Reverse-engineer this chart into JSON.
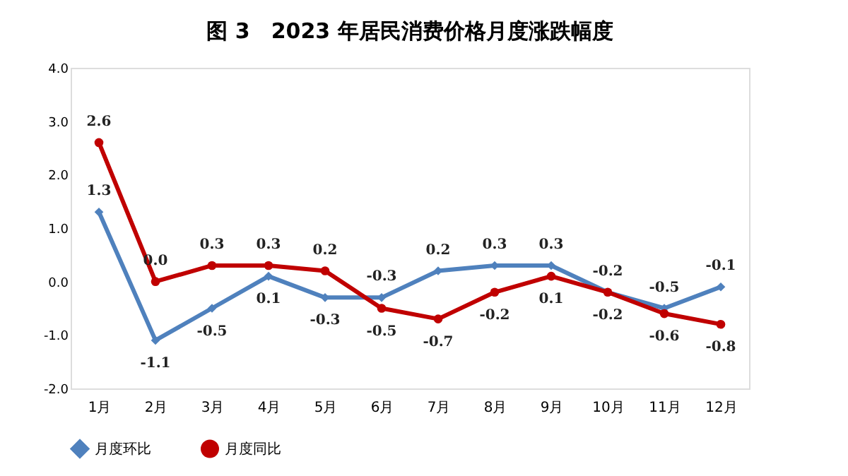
{
  "chart_data": {
    "type": "line",
    "title": "图 3　2023 年居民消费价格月度涨跌幅度",
    "categories": [
      "1月",
      "2月",
      "3月",
      "4月",
      "5月",
      "6月",
      "7月",
      "8月",
      "9月",
      "10月",
      "11月",
      "12月"
    ],
    "series": [
      {
        "name": "月度环比",
        "color": "#4f81bd",
        "marker": "diamond",
        "values": [
          1.3,
          -1.1,
          -0.5,
          0.1,
          -0.3,
          -0.3,
          0.2,
          0.3,
          0.3,
          -0.2,
          -0.5,
          -0.1
        ],
        "value_labels": [
          "1.3",
          "-1.1",
          "-0.5",
          "0.1",
          "-0.3",
          "-0.3",
          "0.2",
          "0.3",
          "0.3",
          "-0.2",
          "-0.5",
          "-0.1"
        ]
      },
      {
        "name": "月度同比",
        "color": "#c00000",
        "marker": "circle",
        "values": [
          2.6,
          0.0,
          0.3,
          0.3,
          0.2,
          -0.5,
          -0.7,
          -0.2,
          0.1,
          -0.2,
          -0.6,
          -0.8
        ],
        "value_labels": [
          "2.6",
          "0.0",
          "0.3",
          "0.3",
          "0.2",
          "-0.5",
          "-0.7",
          "-0.2",
          "0.1",
          "-0.2",
          "-0.6",
          "-0.8"
        ]
      }
    ],
    "ylim": [
      -2,
      4
    ],
    "yticks": [
      {
        "value": -2,
        "label": "-2.0"
      },
      {
        "value": -1,
        "label": "-1.0"
      },
      {
        "value": 0,
        "label": "0.0"
      },
      {
        "value": 1,
        "label": "1.0"
      },
      {
        "value": 2,
        "label": "2.0"
      },
      {
        "value": 3,
        "label": "3.0"
      },
      {
        "value": 4,
        "label": "4.0"
      }
    ],
    "grid": false,
    "legend": "bottom",
    "line_style": "solid"
  }
}
